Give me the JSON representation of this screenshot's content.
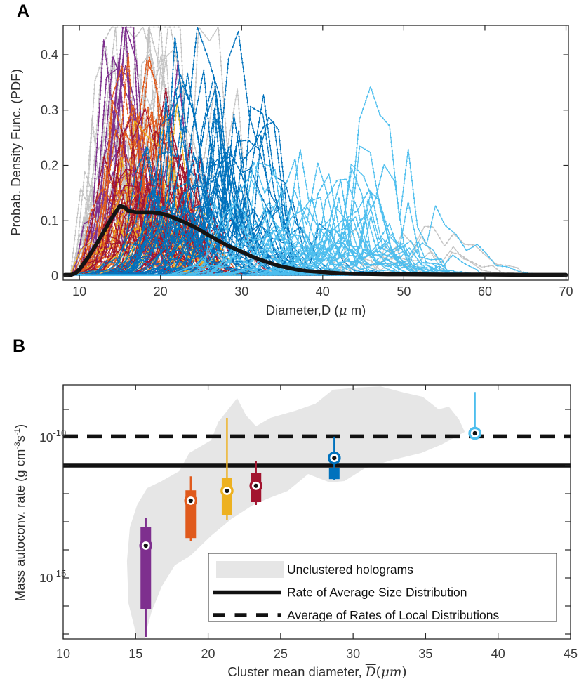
{
  "figure": {
    "background": "#ffffff",
    "axis_color": "#262626",
    "tick_label_color": "#3a3a3a"
  },
  "chart_data": [
    {
      "type": "line",
      "panel_label": "A",
      "ylabel": "Probab. Density Func. (PDF)",
      "xlabel_parts": [
        {
          "t": "Diameter,D ("
        },
        {
          "t": "μ",
          "style": "serif-italic"
        },
        {
          "t": " m)"
        }
      ],
      "xlim": [
        8.0,
        70.3
      ],
      "ylim": [
        0,
        0.453
      ],
      "xticks": [
        10,
        20,
        30,
        40,
        50,
        60,
        70
      ],
      "yticks": [
        0,
        0.1,
        0.2,
        0.3,
        0.4
      ],
      "grid": false,
      "description": "Ensemble of per-hologram droplet size distribution PDFs, colored by cluster; thick black curve is the average size distribution",
      "mean_line": {
        "name": "average-size-distribution",
        "color": "#141414",
        "x": [
          8.2,
          9.0,
          9.6,
          10,
          11,
          12,
          13,
          14,
          15,
          15.6,
          16,
          17,
          18,
          19,
          20,
          21,
          22,
          23,
          24,
          25,
          26,
          27,
          28,
          29,
          30,
          31,
          32,
          33,
          34,
          35,
          36,
          37,
          38,
          40,
          42,
          44,
          46,
          48,
          50,
          55,
          60,
          65,
          70
        ],
        "y": [
          0.002,
          0.002,
          0.006,
          0.012,
          0.032,
          0.055,
          0.08,
          0.105,
          0.127,
          0.124,
          0.118,
          0.115,
          0.115,
          0.115,
          0.113,
          0.109,
          0.103,
          0.097,
          0.09,
          0.082,
          0.073,
          0.065,
          0.057,
          0.05,
          0.044,
          0.037,
          0.031,
          0.026,
          0.021,
          0.017,
          0.014,
          0.011,
          0.009,
          0.007,
          0.005,
          0.004,
          0.0035,
          0.003,
          0.003,
          0.0025,
          0.0025,
          0.002,
          0.002
        ]
      },
      "clusters": [
        {
          "name": "unclustered",
          "color": "#c3c3c3",
          "seed": 11,
          "count": 42,
          "peak_d": [
            11,
            23
          ],
          "peak_pdf": [
            0.1,
            0.46
          ],
          "width": [
            1.0,
            3.2
          ],
          "tail": 40,
          "lw": 1.0
        },
        {
          "name": "unclustered-large",
          "color": "#c3c3c3",
          "seed": 12,
          "count": 6,
          "peak_d": [
            40,
            56
          ],
          "peak_pdf": [
            0.03,
            0.08
          ],
          "width": [
            2.5,
            6.0
          ],
          "tail": 14,
          "lw": 1.0
        },
        {
          "name": "cluster-1-purple",
          "color": "#7E2F8E",
          "seed": 21,
          "count": 16,
          "peak_d": [
            13,
            16.5
          ],
          "peak_pdf": [
            0.15,
            0.43
          ],
          "width": [
            1.0,
            2.2
          ],
          "tail": 7,
          "lw": 1.3
        },
        {
          "name": "cluster-2-orange",
          "color": "#E05A1C",
          "seed": 31,
          "count": 22,
          "peak_d": [
            13.5,
            19.5
          ],
          "peak_pdf": [
            0.1,
            0.29
          ],
          "width": [
            1.2,
            2.8
          ],
          "tail": 14,
          "lw": 1.1
        },
        {
          "name": "cluster-3-yellow",
          "color": "#EDB120",
          "seed": 41,
          "count": 15,
          "peak_d": [
            14,
            22
          ],
          "peak_pdf": [
            0.04,
            0.2
          ],
          "width": [
            1.5,
            3.5
          ],
          "tail": 22,
          "lw": 1.1
        },
        {
          "name": "cluster-4-darkred",
          "color": "#A2142F",
          "seed": 51,
          "count": 24,
          "peak_d": [
            15.5,
            25
          ],
          "peak_pdf": [
            0.07,
            0.23
          ],
          "width": [
            1.5,
            3.5
          ],
          "tail": 22,
          "lw": 1.1
        },
        {
          "name": "cluster-5-blue",
          "color": "#0072BD",
          "seed": 61,
          "count": 42,
          "peak_d": [
            19,
            33
          ],
          "peak_pdf": [
            0.06,
            0.26
          ],
          "width": [
            1.8,
            4.5
          ],
          "tail": 16,
          "lw": 1.1
        },
        {
          "name": "cluster-6-lightblue",
          "color": "#4DBEEE",
          "seed": 71,
          "count": 40,
          "peak_d": [
            29,
            48
          ],
          "peak_pdf": [
            0.03,
            0.18
          ],
          "width": [
            2.0,
            5.0
          ],
          "tail": 20,
          "lw": 1.1
        }
      ]
    },
    {
      "type": "box",
      "panel_label": "B",
      "ylabel_parts": [
        {
          "t": "Mass autoconv. rate (g cm"
        },
        {
          "t": "-3",
          "sup": true
        },
        {
          "t": "s"
        },
        {
          "t": "-1",
          "sup": true
        },
        {
          "t": ")"
        }
      ],
      "xlabel_parts": [
        {
          "t": "Cluster mean diameter, "
        },
        {
          "t": "D",
          "style": "Dbar"
        },
        {
          "t": "(",
          "style": "serif"
        },
        {
          "t": "μm",
          "style": "serif-italic"
        },
        {
          "t": ")",
          "style": "serif"
        }
      ],
      "xlim": [
        10,
        45
      ],
      "ylog_lim": [
        -17.15,
        -8.1
      ],
      "xticks": [
        10,
        15,
        20,
        25,
        30,
        35,
        40,
        45
      ],
      "ytick_exponents": [
        -9,
        -10,
        -11,
        -12,
        -13,
        -14,
        -15,
        -16,
        -17
      ],
      "ytick_labeled_exponents": [
        -10,
        -15
      ],
      "solid_line": {
        "name": "rate-of-average-size-distribution",
        "label": "Rate of Average Size Distribution",
        "log10_value": -11.0,
        "color": "#111111"
      },
      "dashed_line": {
        "name": "average-of-rates-of-local-distributions",
        "label": "Average of Rates of Local Distributions",
        "log10_value": -9.96,
        "color": "#111111"
      },
      "region": {
        "name": "unclustered-holograms-envelope",
        "label": "Unclustered holograms",
        "color": "#e6e6e6",
        "points_d_log10": [
          [
            15.1,
            -17.15
          ],
          [
            14.5,
            -15.9
          ],
          [
            14.4,
            -14.4
          ],
          [
            14.6,
            -13.2
          ],
          [
            15.1,
            -12.4
          ],
          [
            15.8,
            -11.8
          ],
          [
            16.8,
            -11.55
          ],
          [
            18.0,
            -11.2
          ],
          [
            18.7,
            -10.55
          ],
          [
            20.2,
            -10.1
          ],
          [
            20.7,
            -9.45
          ],
          [
            22.0,
            -8.6
          ],
          [
            22.6,
            -9.2
          ],
          [
            23.3,
            -9.6
          ],
          [
            24.3,
            -9.3
          ],
          [
            26.0,
            -9.05
          ],
          [
            27.4,
            -8.8
          ],
          [
            28.6,
            -8.3
          ],
          [
            30.3,
            -8.22
          ],
          [
            31.9,
            -8.18
          ],
          [
            33.5,
            -8.4
          ],
          [
            34.8,
            -8.55
          ],
          [
            35.9,
            -9.0
          ],
          [
            36.6,
            -8.9
          ],
          [
            37.3,
            -9.35
          ],
          [
            37.7,
            -9.8
          ],
          [
            37.0,
            -10.0
          ],
          [
            36.1,
            -10.25
          ],
          [
            34.7,
            -10.55
          ],
          [
            32.7,
            -10.8
          ],
          [
            30.8,
            -11.1
          ],
          [
            29.4,
            -11.55
          ],
          [
            28.4,
            -11.6
          ],
          [
            26.9,
            -11.3
          ],
          [
            25.5,
            -11.9
          ],
          [
            24.0,
            -12.2
          ],
          [
            23.1,
            -12.4
          ],
          [
            21.6,
            -12.9
          ],
          [
            20.2,
            -13.5
          ],
          [
            18.8,
            -14.2
          ],
          [
            17.7,
            -14.55
          ],
          [
            16.8,
            -15.3
          ],
          [
            16.1,
            -16.2
          ],
          [
            15.6,
            -17.15
          ]
        ]
      },
      "boxes": [
        {
          "name": "cluster-1",
          "color": "#7E2F8E",
          "x": 15.7,
          "whisker_lo": -17.1,
          "whisker_hi": -12.85,
          "box_lo": -16.1,
          "box_hi": -13.2,
          "median": -13.85
        },
        {
          "name": "cluster-2",
          "color": "#E05A1C",
          "x": 18.8,
          "whisker_lo": -13.7,
          "whisker_hi": -11.38,
          "box_lo": -13.58,
          "box_hi": -11.88,
          "median": -12.25
        },
        {
          "name": "cluster-3",
          "color": "#EDB120",
          "x": 21.3,
          "whisker_lo": -12.95,
          "whisker_hi": -9.3,
          "box_lo": -12.75,
          "box_hi": -11.45,
          "median": -11.9
        },
        {
          "name": "cluster-4",
          "color": "#A2142F",
          "x": 23.3,
          "whisker_lo": -12.4,
          "whisker_hi": -10.85,
          "box_lo": -12.3,
          "box_hi": -11.25,
          "median": -11.72
        },
        {
          "name": "cluster-5",
          "color": "#0072BD",
          "x": 28.7,
          "whisker_lo": -11.52,
          "whisker_hi": -9.97,
          "box_lo": -11.48,
          "box_hi": -11.1,
          "median": -10.73
        },
        {
          "name": "cluster-6",
          "color": "#4DBEEE",
          "x": 38.4,
          "whisker_lo": -10.0,
          "whisker_hi": -8.38,
          "box_lo": -9.95,
          "box_hi": -9.78,
          "median": -9.85
        }
      ],
      "legend": {
        "items": [
          {
            "swatch": "patch",
            "color": "#e6e6e6",
            "label": "Unclustered holograms"
          },
          {
            "swatch": "solid-line",
            "color": "#111111",
            "label": "Rate of Average Size Distribution"
          },
          {
            "swatch": "dashed-line",
            "color": "#111111",
            "label": "Average of Rates of Local Distributions"
          }
        ]
      }
    }
  ]
}
